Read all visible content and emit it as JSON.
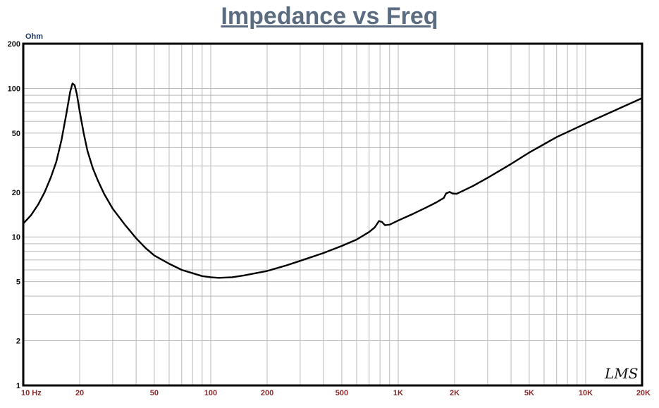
{
  "chart_data": {
    "type": "line",
    "title": "Impedance vs Freq",
    "ylabel": "Ohm",
    "x_scale": "log",
    "y_scale": "log",
    "xlim": [
      10,
      20000
    ],
    "ylim": [
      1,
      200
    ],
    "grid": true,
    "x_ticks": [
      {
        "value": 10,
        "label": "10  Hz"
      },
      {
        "value": 20,
        "label": "20"
      },
      {
        "value": 50,
        "label": "50"
      },
      {
        "value": 100,
        "label": "100"
      },
      {
        "value": 200,
        "label": "200"
      },
      {
        "value": 500,
        "label": "500"
      },
      {
        "value": 1000,
        "label": "1K"
      },
      {
        "value": 2000,
        "label": "2K"
      },
      {
        "value": 5000,
        "label": "5K"
      },
      {
        "value": 10000,
        "label": "10K"
      },
      {
        "value": 20000,
        "label": "20K"
      }
    ],
    "y_ticks": [
      {
        "value": 1,
        "label": "1"
      },
      {
        "value": 2,
        "label": "2"
      },
      {
        "value": 5,
        "label": "5"
      },
      {
        "value": 10,
        "label": "10"
      },
      {
        "value": 20,
        "label": "20"
      },
      {
        "value": 50,
        "label": "50"
      },
      {
        "value": 100,
        "label": "100"
      },
      {
        "value": 200,
        "label": "200"
      }
    ],
    "series": [
      {
        "color": "#000000",
        "points": [
          [
            10,
            12.3
          ],
          [
            11,
            14
          ],
          [
            12,
            16.5
          ],
          [
            13,
            20
          ],
          [
            14,
            25
          ],
          [
            15,
            32
          ],
          [
            16,
            45
          ],
          [
            17,
            68
          ],
          [
            17.8,
            95
          ],
          [
            18.3,
            108
          ],
          [
            18.8,
            105
          ],
          [
            19.3,
            92
          ],
          [
            20,
            70
          ],
          [
            21,
            50
          ],
          [
            22,
            38
          ],
          [
            23.5,
            29
          ],
          [
            25,
            24
          ],
          [
            27,
            19.5
          ],
          [
            30,
            15.5
          ],
          [
            35,
            12
          ],
          [
            40,
            9.8
          ],
          [
            45,
            8.4
          ],
          [
            50,
            7.5
          ],
          [
            60,
            6.6
          ],
          [
            70,
            6.0
          ],
          [
            80,
            5.7
          ],
          [
            90,
            5.45
          ],
          [
            100,
            5.35
          ],
          [
            110,
            5.3
          ],
          [
            130,
            5.35
          ],
          [
            150,
            5.5
          ],
          [
            200,
            5.9
          ],
          [
            250,
            6.4
          ],
          [
            300,
            6.9
          ],
          [
            400,
            7.8
          ],
          [
            500,
            8.7
          ],
          [
            600,
            9.6
          ],
          [
            700,
            10.8
          ],
          [
            750,
            11.6
          ],
          [
            790,
            12.8
          ],
          [
            820,
            12.6
          ],
          [
            850,
            12.0
          ],
          [
            900,
            12.1
          ],
          [
            1000,
            12.9
          ],
          [
            1200,
            14.3
          ],
          [
            1400,
            15.7
          ],
          [
            1600,
            17.1
          ],
          [
            1750,
            18.3
          ],
          [
            1800,
            19.6
          ],
          [
            1880,
            20.1
          ],
          [
            1950,
            19.6
          ],
          [
            2050,
            19.5
          ],
          [
            2500,
            22
          ],
          [
            3000,
            25
          ],
          [
            4000,
            31
          ],
          [
            5000,
            37
          ],
          [
            7000,
            47
          ],
          [
            10000,
            58
          ],
          [
            15000,
            73
          ],
          [
            20000,
            86
          ]
        ]
      }
    ]
  },
  "signature_text": "LMS"
}
